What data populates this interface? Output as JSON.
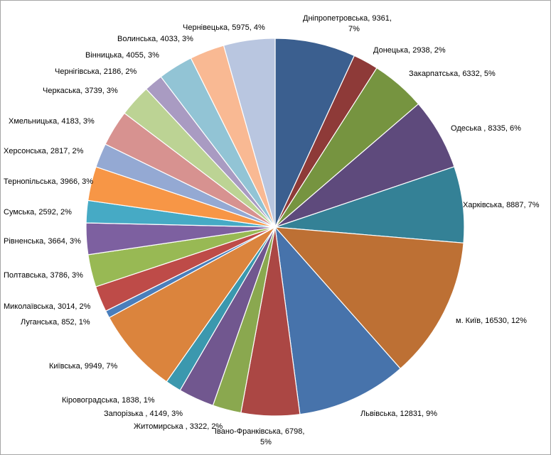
{
  "chart_data": {
    "type": "pie",
    "title": "",
    "start": "12 o'clock",
    "direction": "clockwise",
    "slices": [
      {
        "name": "Дніпропетровська",
        "value": 9361,
        "percent": "7%",
        "label": [
          "Дніпропетровська, 9361,",
          "7%"
        ],
        "color": "#3b5f8f"
      },
      {
        "name": "Донецька",
        "value": 2938,
        "percent": "2%",
        "label": [
          "Донецька, 2938, 2%"
        ],
        "color": "#8e3a38"
      },
      {
        "name": "Закарпатська",
        "value": 6332,
        "percent": "5%",
        "label": [
          "Закарпатська, 6332, 5%"
        ],
        "color": "#769440"
      },
      {
        "name": "Одеська",
        "value": 8335,
        "percent": "6%",
        "label": [
          "Одеська , 8335, 6%"
        ],
        "color": "#5e4a7c"
      },
      {
        "name": "Харківська",
        "value": 8887,
        "percent": "7%",
        "label": [
          "Харківська, 8887, 7%"
        ],
        "color": "#348196"
      },
      {
        "name": "м. Київ",
        "value": 16530,
        "percent": "12%",
        "label": [
          "м. Київ, 16530, 12%"
        ],
        "color": "#bd7034"
      },
      {
        "name": "Львівська",
        "value": 12831,
        "percent": "9%",
        "label": [
          "Львівська, 12831, 9%"
        ],
        "color": "#4773ab"
      },
      {
        "name": "Івано-Франківська",
        "value": 6798,
        "percent": "5%",
        "label": [
          "Івано-Франківська, 6798,",
          "5%"
        ],
        "color": "#ab4744"
      },
      {
        "name": "Житомирська",
        "value": 3322,
        "percent": "2%",
        "label": [
          "Житомирська , 3322, 2%"
        ],
        "color": "#8aa84f"
      },
      {
        "name": "Запорізька",
        "value": 4149,
        "percent": "3%",
        "label": [
          "Запорізька , 4149, 3%"
        ],
        "color": "#71578f"
      },
      {
        "name": "Кіровоградська",
        "value": 1838,
        "percent": "1%",
        "label": [
          "Кіровоградська, 1838, 1%"
        ],
        "color": "#3b98ae"
      },
      {
        "name": "Київська",
        "value": 9949,
        "percent": "7%",
        "label": [
          "Київська, 9949, 7%"
        ],
        "color": "#db843d"
      },
      {
        "name": "Луганська",
        "value": 852,
        "percent": "1%",
        "label": [
          "Луганська, 852, 1%"
        ],
        "color": "#4a7ebb"
      },
      {
        "name": "Миколаївська",
        "value": 3014,
        "percent": "2%",
        "label": [
          "Миколаївська, 3014, 2%"
        ],
        "color": "#be4b48"
      },
      {
        "name": "Полтавська",
        "value": 3786,
        "percent": "3%",
        "label": [
          "Полтавська, 3786, 3%"
        ],
        "color": "#98b954"
      },
      {
        "name": "Рівненська",
        "value": 3664,
        "percent": "3%",
        "label": [
          "Рівненська, 3664, 3%"
        ],
        "color": "#7d60a0"
      },
      {
        "name": "Сумська",
        "value": 2592,
        "percent": "2%",
        "label": [
          "Сумська, 2592, 2%"
        ],
        "color": "#46aac5"
      },
      {
        "name": "Тернопільська",
        "value": 3966,
        "percent": "3%",
        "label": [
          "Тернопільська, 3966, 3%"
        ],
        "color": "#f79646"
      },
      {
        "name": "Херсонська",
        "value": 2817,
        "percent": "2%",
        "label": [
          "Херсонська, 2817, 2%"
        ],
        "color": "#94a9d3"
      },
      {
        "name": "Хмельницька",
        "value": 4183,
        "percent": "3%",
        "label": [
          "Хмельницька, 4183, 3%"
        ],
        "color": "#d79290"
      },
      {
        "name": "Черкаська",
        "value": 3739,
        "percent": "3%",
        "label": [
          "Черкаська, 3739, 3%"
        ],
        "color": "#bcd394"
      },
      {
        "name": "Чернігівська",
        "value": 2186,
        "percent": "2%",
        "label": [
          "Чернігівська, 2186, 2%"
        ],
        "color": "#a99bc2"
      },
      {
        "name": "Вінницька",
        "value": 4055,
        "percent": "3%",
        "label": [
          "Вінницька, 4055, 3%"
        ],
        "color": "#92c4d5"
      },
      {
        "name": "Волинська",
        "value": 4033,
        "percent": "3%",
        "label": [
          "Волинська, 4033, 3%"
        ],
        "color": "#f9b993"
      },
      {
        "name": "Чернівецька",
        "value": 5975,
        "percent": "4%",
        "label": [
          "Чернівецька, 5975, 4%"
        ],
        "color": "#b9c6e0"
      }
    ]
  }
}
